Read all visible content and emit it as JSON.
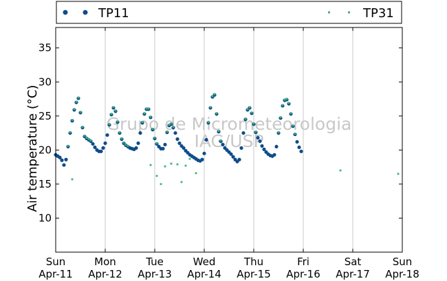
{
  "chart_data": {
    "type": "scatter",
    "ylabel": "Air temperature (°C)",
    "ylim": [
      5,
      38
    ],
    "yticks": [
      10,
      15,
      20,
      25,
      30,
      35
    ],
    "xlim": [
      "2015-04-11T00:00",
      "2015-04-18T00:00"
    ],
    "xticks": [
      {
        "day": "Sun",
        "date": "Apr-11"
      },
      {
        "day": "Mon",
        "date": "Apr-12"
      },
      {
        "day": "Tue",
        "date": "Apr-13"
      },
      {
        "day": "Wed",
        "date": "Apr-14"
      },
      {
        "day": "Thu",
        "date": "Apr-15"
      },
      {
        "day": "Fri",
        "date": "Apr-16"
      },
      {
        "day": "Sat",
        "date": "Apr-17"
      },
      {
        "day": "Sun",
        "date": "Apr-18"
      }
    ],
    "grid": "vertical",
    "legend": "top",
    "watermark": [
      "Grupo de Micrometeorologia",
      "IAG/USP"
    ],
    "series": [
      {
        "name": "TP11",
        "color": "#0f4c8a",
        "marker": "circle",
        "points": [
          [
            "2015-04-11T00:00",
            19.3
          ],
          [
            "2015-04-11T01:00",
            19.1
          ],
          [
            "2015-04-11T02:00",
            18.9
          ],
          [
            "2015-04-11T03:00",
            18.5
          ],
          [
            "2015-04-11T04:00",
            17.8
          ],
          [
            "2015-04-11T05:00",
            18.6
          ],
          [
            "2015-04-11T06:00",
            20.5
          ],
          [
            "2015-04-11T07:00",
            22.5
          ],
          [
            "2015-04-11T08:00",
            24.3
          ],
          [
            "2015-04-11T09:00",
            25.9
          ],
          [
            "2015-04-11T10:00",
            27.0
          ],
          [
            "2015-04-11T11:00",
            27.6
          ],
          [
            "2015-04-11T12:00",
            25.5
          ],
          [
            "2015-04-11T13:00",
            23.3
          ],
          [
            "2015-04-11T14:00",
            22.0
          ],
          [
            "2015-04-11T15:00",
            21.7
          ],
          [
            "2015-04-11T16:00",
            21.5
          ],
          [
            "2015-04-11T17:00",
            21.3
          ],
          [
            "2015-04-11T18:00",
            20.9
          ],
          [
            "2015-04-11T19:00",
            20.4
          ],
          [
            "2015-04-11T20:00",
            20.0
          ],
          [
            "2015-04-11T21:00",
            19.8
          ],
          [
            "2015-04-11T22:00",
            19.8
          ],
          [
            "2015-04-11T23:00",
            20.3
          ],
          [
            "2015-04-12T00:00",
            21.0
          ],
          [
            "2015-04-12T01:00",
            22.2
          ],
          [
            "2015-04-12T02:00",
            23.7
          ],
          [
            "2015-04-12T03:00",
            25.2
          ],
          [
            "2015-04-12T04:00",
            26.2
          ],
          [
            "2015-04-12T05:00",
            25.7
          ],
          [
            "2015-04-12T06:00",
            24.1
          ],
          [
            "2015-04-12T07:00",
            22.5
          ],
          [
            "2015-04-12T08:00",
            21.6
          ],
          [
            "2015-04-12T09:00",
            21.0
          ],
          [
            "2015-04-12T10:00",
            20.7
          ],
          [
            "2015-04-12T11:00",
            20.5
          ],
          [
            "2015-04-12T12:00",
            20.3
          ],
          [
            "2015-04-12T13:00",
            20.2
          ],
          [
            "2015-04-12T14:00",
            20.1
          ],
          [
            "2015-04-12T15:00",
            20.3
          ],
          [
            "2015-04-12T16:00",
            21.0
          ],
          [
            "2015-04-12T17:00",
            22.5
          ],
          [
            "2015-04-12T18:00",
            24.0
          ],
          [
            "2015-04-12T19:00",
            25.3
          ],
          [
            "2015-04-12T20:00",
            26.0
          ],
          [
            "2015-04-12T21:00",
            26.0
          ],
          [
            "2015-04-12T22:00",
            24.8
          ],
          [
            "2015-04-12T23:00",
            23.0
          ],
          [
            "2015-04-13T00:00",
            21.7
          ],
          [
            "2015-04-13T01:00",
            20.9
          ],
          [
            "2015-04-13T02:00",
            20.5
          ],
          [
            "2015-04-13T03:00",
            20.2
          ],
          [
            "2015-04-13T04:00",
            20.2
          ],
          [
            "2015-04-13T05:00",
            20.8
          ],
          [
            "2015-04-13T06:00",
            22.6
          ],
          [
            "2015-04-13T07:00",
            23.6
          ],
          [
            "2015-04-13T08:00",
            23.8
          ],
          [
            "2015-04-13T09:00",
            23.3
          ],
          [
            "2015-04-13T10:00",
            22.5
          ],
          [
            "2015-04-13T11:00",
            21.6
          ],
          [
            "2015-04-13T12:00",
            21.0
          ],
          [
            "2015-04-13T13:00",
            20.6
          ],
          [
            "2015-04-13T14:00",
            20.3
          ],
          [
            "2015-04-13T15:00",
            19.9
          ],
          [
            "2015-04-13T16:00",
            19.6
          ],
          [
            "2015-04-13T17:00",
            19.3
          ],
          [
            "2015-04-13T18:00",
            19.1
          ],
          [
            "2015-04-13T19:00",
            18.9
          ],
          [
            "2015-04-13T20:00",
            18.7
          ],
          [
            "2015-04-13T21:00",
            18.5
          ],
          [
            "2015-04-13T22:00",
            18.4
          ],
          [
            "2015-04-13T23:00",
            18.6
          ],
          [
            "2015-04-14T00:00",
            19.5
          ],
          [
            "2015-04-14T01:00",
            21.5
          ],
          [
            "2015-04-14T02:00",
            24.0
          ],
          [
            "2015-04-14T03:00",
            26.2
          ],
          [
            "2015-04-14T04:00",
            27.8
          ],
          [
            "2015-04-14T05:00",
            28.1
          ],
          [
            "2015-04-14T06:00",
            25.3
          ],
          [
            "2015-04-14T07:00",
            22.7
          ],
          [
            "2015-04-14T08:00",
            21.3
          ],
          [
            "2015-04-14T09:00",
            20.8
          ],
          [
            "2015-04-14T10:00",
            20.3
          ],
          [
            "2015-04-14T11:00",
            20.0
          ],
          [
            "2015-04-14T12:00",
            19.7
          ],
          [
            "2015-04-14T13:00",
            19.4
          ],
          [
            "2015-04-14T14:00",
            19.0
          ],
          [
            "2015-04-14T15:00",
            18.6
          ],
          [
            "2015-04-14T16:00",
            18.3
          ],
          [
            "2015-04-14T17:00",
            18.6
          ],
          [
            "2015-04-14T18:00",
            20.3
          ],
          [
            "2015-04-14T19:00",
            22.5
          ],
          [
            "2015-04-14T20:00",
            24.5
          ],
          [
            "2015-04-14T21:00",
            25.9
          ],
          [
            "2015-04-14T22:00",
            26.2
          ],
          [
            "2015-04-14T23:00",
            25.4
          ],
          [
            "2015-04-15T00:00",
            23.8
          ],
          [
            "2015-04-15T01:00",
            22.6
          ],
          [
            "2015-04-15T02:00",
            21.8
          ],
          [
            "2015-04-15T03:00",
            21.3
          ],
          [
            "2015-04-15T04:00",
            20.6
          ],
          [
            "2015-04-15T05:00",
            20.1
          ],
          [
            "2015-04-15T06:00",
            19.7
          ],
          [
            "2015-04-15T07:00",
            19.4
          ],
          [
            "2015-04-15T08:00",
            19.2
          ],
          [
            "2015-04-15T09:00",
            19.1
          ],
          [
            "2015-04-15T10:00",
            19.3
          ],
          [
            "2015-04-15T11:00",
            20.5
          ],
          [
            "2015-04-15T12:00",
            22.5
          ],
          [
            "2015-04-15T13:00",
            24.7
          ],
          [
            "2015-04-15T14:00",
            26.5
          ],
          [
            "2015-04-15T15:00",
            27.3
          ],
          [
            "2015-04-15T16:00",
            27.4
          ],
          [
            "2015-04-15T17:00",
            26.8
          ],
          [
            "2015-04-15T18:00",
            25.3
          ],
          [
            "2015-04-15T19:00",
            23.5
          ],
          [
            "2015-04-15T20:00",
            22.3
          ],
          [
            "2015-04-15T21:00",
            21.2
          ],
          [
            "2015-04-15T22:00",
            20.4
          ],
          [
            "2015-04-15T23:00",
            19.8
          ]
        ]
      },
      {
        "name": "TP31",
        "color": "#3fb07a",
        "marker": "square",
        "points": [
          [
            "2015-04-11T06:00",
            20.6
          ],
          [
            "2015-04-11T07:00",
            22.6
          ],
          [
            "2015-04-11T08:00",
            24.4
          ],
          [
            "2015-04-11T09:00",
            26.0
          ],
          [
            "2015-04-11T10:00",
            27.1
          ],
          [
            "2015-04-11T11:00",
            27.7
          ],
          [
            "2015-04-11T12:00",
            25.6
          ],
          [
            "2015-04-11T13:00",
            23.4
          ],
          [
            "2015-04-11T14:00",
            22.1
          ],
          [
            "2015-04-11T15:00",
            21.8
          ],
          [
            "2015-04-11T16:00",
            21.6
          ],
          [
            "2015-04-11T17:00",
            21.4
          ],
          [
            "2015-04-12T02:00",
            23.8
          ],
          [
            "2015-04-12T03:00",
            25.3
          ],
          [
            "2015-04-12T04:00",
            26.3
          ],
          [
            "2015-04-12T05:00",
            25.8
          ],
          [
            "2015-04-12T06:00",
            24.2
          ],
          [
            "2015-04-12T07:00",
            22.6
          ],
          [
            "2015-04-12T08:00",
            21.7
          ],
          [
            "2015-04-12T09:00",
            21.1
          ],
          [
            "2015-04-12T10:00",
            20.8
          ],
          [
            "2015-04-12T11:00",
            20.6
          ],
          [
            "2015-04-12T18:00",
            24.1
          ],
          [
            "2015-04-12T19:00",
            25.4
          ],
          [
            "2015-04-12T20:00",
            26.1
          ],
          [
            "2015-04-12T21:00",
            26.1
          ],
          [
            "2015-04-12T22:00",
            24.9
          ],
          [
            "2015-04-12T23:00",
            23.1
          ],
          [
            "2015-04-13T00:00",
            21.8
          ],
          [
            "2015-04-13T01:00",
            21.0
          ],
          [
            "2015-04-13T06:00",
            22.7
          ],
          [
            "2015-04-13T07:00",
            23.7
          ],
          [
            "2015-04-13T08:00",
            23.9
          ],
          [
            "2015-04-13T09:00",
            23.4
          ],
          [
            "2015-04-14T02:00",
            24.1
          ],
          [
            "2015-04-14T03:00",
            26.3
          ],
          [
            "2015-04-14T04:00",
            27.9
          ],
          [
            "2015-04-14T05:00",
            28.2
          ],
          [
            "2015-04-14T06:00",
            25.4
          ],
          [
            "2015-04-14T07:00",
            22.8
          ],
          [
            "2015-04-14T08:00",
            21.4
          ],
          [
            "2015-04-14T20:00",
            24.6
          ],
          [
            "2015-04-14T21:00",
            26.0
          ],
          [
            "2015-04-14T22:00",
            26.3
          ],
          [
            "2015-04-14T23:00",
            25.5
          ],
          [
            "2015-04-15T00:00",
            23.9
          ],
          [
            "2015-04-15T01:00",
            22.7
          ],
          [
            "2015-04-15T12:00",
            22.6
          ],
          [
            "2015-04-15T13:00",
            24.8
          ],
          [
            "2015-04-15T14:00",
            26.6
          ],
          [
            "2015-04-15T15:00",
            27.4
          ],
          [
            "2015-04-15T16:00",
            27.5
          ],
          [
            "2015-04-15T17:00",
            26.9
          ],
          [
            "2015-04-15T18:00",
            25.4
          ],
          [
            "2015-04-15T19:00",
            23.6
          ],
          [
            "2015-04-15T20:00",
            22.4
          ],
          [
            "2015-04-11T08:00",
            15.7
          ],
          [
            "2015-04-12T22:00",
            17.8
          ],
          [
            "2015-04-13T01:00",
            16.2
          ],
          [
            "2015-04-13T03:00",
            15.0
          ],
          [
            "2015-04-13T05:00",
            17.6
          ],
          [
            "2015-04-13T08:00",
            18.0
          ],
          [
            "2015-04-13T11:00",
            17.9
          ],
          [
            "2015-04-13T13:00",
            15.3
          ],
          [
            "2015-04-13T15:00",
            17.7
          ],
          [
            "2015-04-13T17:00",
            18.7
          ],
          [
            "2015-04-13T20:00",
            16.6
          ],
          [
            "2015-04-16T18:00",
            17.0
          ],
          [
            "2015-04-17T22:00",
            16.5
          ]
        ]
      }
    ]
  }
}
